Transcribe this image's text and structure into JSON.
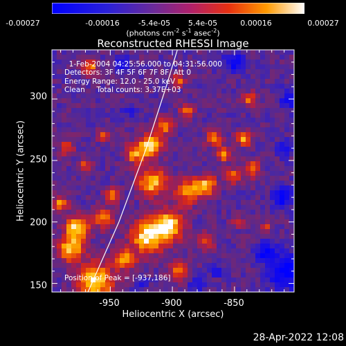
{
  "colorbar": {
    "ticks": [
      "-0.00027",
      "-0.00016",
      "-5.4e-05",
      "5.4e-05",
      "0.00016",
      "0.00027"
    ],
    "units_main": "(photons cm",
    "units_sup1": "-2",
    "units_mid1": " s",
    "units_sup2": "-1",
    "units_mid2": " asec",
    "units_sup3": "-2",
    "units_end": ")"
  },
  "chart_data": {
    "type": "heatmap",
    "title": "Reconstructed RHESSI Image",
    "xlabel": "Heliocentric X (arcsec)",
    "ylabel": "Heliocentric Y (arcsec)",
    "xlim": [
      -997,
      -802
    ],
    "ylim": [
      143,
      340
    ],
    "xticks": [
      "-950",
      "-900",
      "-850"
    ],
    "yticks": [
      "150",
      "200",
      "250",
      "300"
    ],
    "colormap": "blue-purple-red-orange-yellow-white",
    "value_range": [
      -0.00027,
      0.00027
    ],
    "limb_line": [
      [
        -968,
        143
      ],
      [
        -943,
        200
      ],
      [
        -921,
        260
      ],
      [
        -905,
        310
      ],
      [
        -896,
        340
      ]
    ],
    "peak_position": [
      -937,
      186
    ]
  },
  "info": {
    "line1": "  1-Feb-2004 04:25:56.000 to 04:31:56.000",
    "line2": "Detectors: 3F 4F 5F 6F 7F 8F, Att 0",
    "line3": "Energy Range: 12.0 - 25.0 keV",
    "line4": "Clean     Total counts: 3.37E+03"
  },
  "peak_text": "Position of Peak = [-937,186]",
  "timestamp": "28-Apr-2022 12:08"
}
